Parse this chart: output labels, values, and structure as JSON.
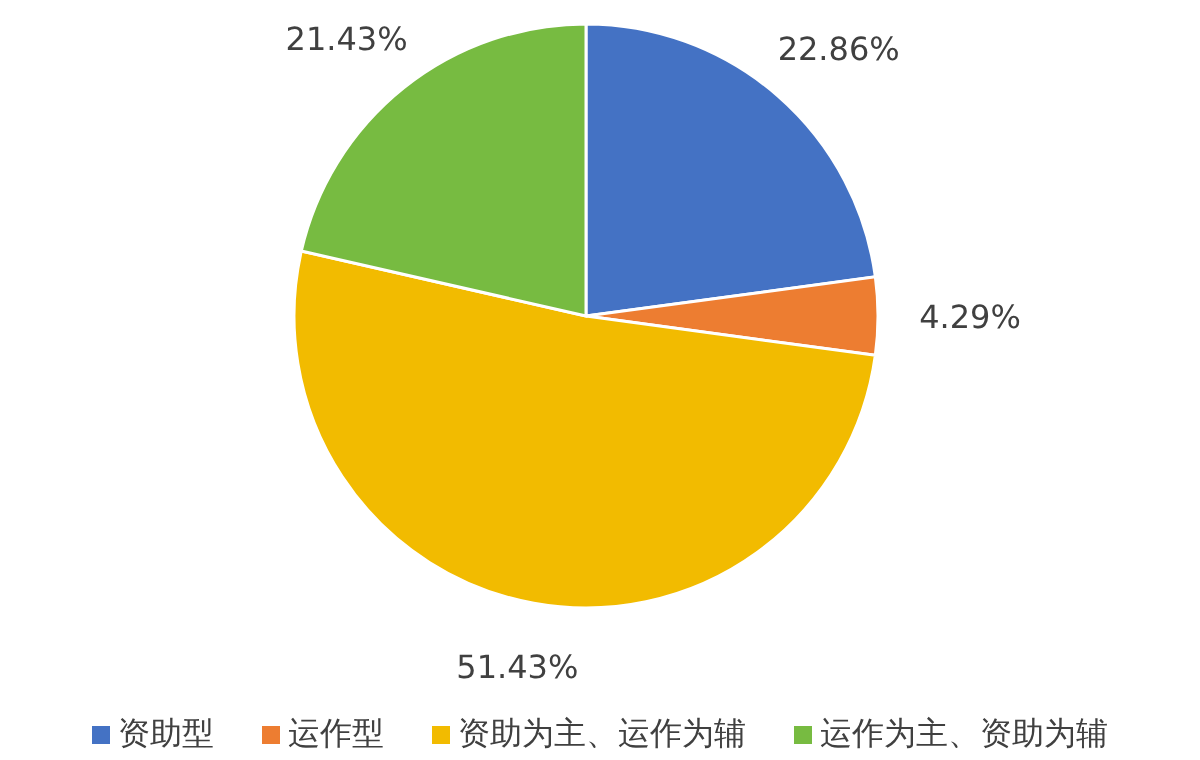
{
  "chart_data": {
    "type": "pie",
    "categories": [
      "资助型",
      "运作型",
      "资助为主、运作为辅",
      "运作为主、资助为辅"
    ],
    "values": [
      22.86,
      4.29,
      51.43,
      21.43
    ],
    "colors": [
      "#4472c4",
      "#ed7d31",
      "#f2bb00",
      "#77bb41"
    ],
    "value_labels": [
      "22.86%",
      "4.29%",
      "51.43%",
      "21.43%"
    ],
    "legend": "bottom"
  }
}
